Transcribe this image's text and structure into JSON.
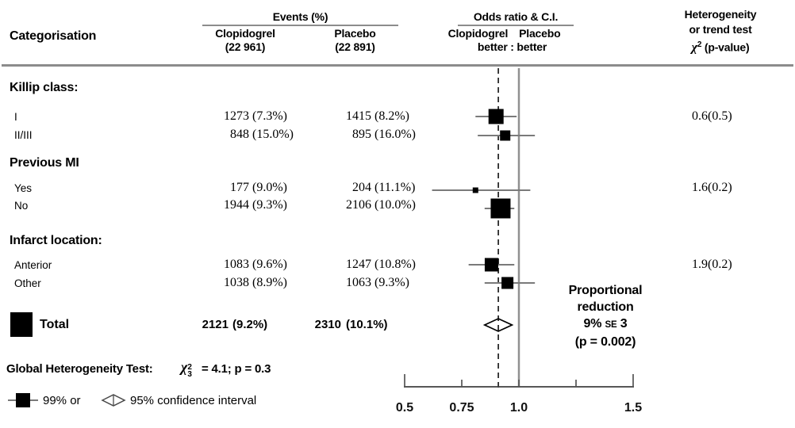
{
  "header": {
    "categorisation": "Categorisation",
    "events_group": "Events (%)",
    "clopidogrel": "Clopidogrel",
    "clopidogrel_n": "(22 961)",
    "placebo": "Placebo",
    "placebo_n": "(22 891)",
    "or_group": "Odds ratio & C.I.",
    "or_col_left": "Clopidogrel",
    "or_col_right": "Placebo",
    "or_better": "better : better",
    "het_l1": "Heterogeneity",
    "het_l2": "or trend test",
    "het_chi": "χ",
    "het_sup": "2",
    "het_rest": "(p-value)"
  },
  "sections": [
    {
      "label": "Killip class:",
      "het": "0.6(0.5)",
      "rows": [
        {
          "label": "I",
          "c_n": "1273",
          "c_pct": "(7.3%)",
          "p_n": "1415",
          "p_pct": "(8.2%)"
        },
        {
          "label": "II/III",
          "c_n": "848",
          "c_pct": "(15.0%)",
          "p_n": "895",
          "p_pct": "(16.0%)"
        }
      ]
    },
    {
      "label": "Previous MI",
      "het": "1.6(0.2)",
      "rows": [
        {
          "label": "Yes",
          "c_n": "177",
          "c_pct": "(9.0%)",
          "p_n": "204",
          "p_pct": "(11.1%)"
        },
        {
          "label": "No",
          "c_n": "1944",
          "c_pct": "(9.3%)",
          "p_n": "2106",
          "p_pct": "(10.0%)"
        }
      ]
    },
    {
      "label": "Infarct location:",
      "het": "1.9(0.2)",
      "rows": [
        {
          "label": "Anterior",
          "c_n": "1083",
          "c_pct": "(9.6%)",
          "p_n": "1247",
          "p_pct": "(10.8%)"
        },
        {
          "label": "Other",
          "c_n": "1038",
          "c_pct": "(8.9%)",
          "p_n": "1063",
          "p_pct": "(9.3%)"
        }
      ]
    }
  ],
  "total": {
    "label": "Total",
    "c_n": "2121",
    "c_pct": "(9.2%)",
    "p_n": "2310",
    "p_pct": "(10.1%)"
  },
  "proportional": {
    "l1": "Proportional",
    "l2": "reduction",
    "l3_pre": "9% ",
    "l3_se": "SE",
    "l3_post": " 3",
    "l4": "(p = 0.002)"
  },
  "global_test": {
    "prefix": "Global Heterogeneity Test:",
    "chi": "χ",
    "sup": "2",
    "sub": "3",
    "result": "= 4.1; p = 0.3"
  },
  "legend": {
    "ci99": "99% or",
    "ci95": "95% confidence interval"
  },
  "colors": {
    "rule_gray": "#8c8c8c",
    "ci_line_gray": "#7a7a7a",
    "reference_line_gray": "#909090",
    "marker_black": "#000000"
  },
  "chart_data": {
    "type": "forest_plot",
    "title": "Odds ratio & C.I.",
    "x_axis": {
      "scale": "linear",
      "min": 0.5,
      "max": 1.5,
      "ticks": [
        0.5,
        0.75,
        1.0,
        1.25,
        1.5
      ],
      "tick_labels": [
        "0.5",
        "0.75",
        "1.0",
        "",
        "1.5"
      ]
    },
    "reference_line_or": 1.0,
    "overall_dashed_line_or": 0.91,
    "rows": [
      {
        "id": "killip_i",
        "section": "Killip class:",
        "label": "I",
        "clopidogrel_events": 1273,
        "clopidogrel_pct": 7.3,
        "placebo_events": 1415,
        "placebo_pct": 8.2,
        "or": 0.9,
        "ci_low": 0.81,
        "ci_high": 0.99,
        "marker_size": 19
      },
      {
        "id": "killip_ii_iii",
        "section": "Killip class:",
        "label": "II/III",
        "clopidogrel_events": 848,
        "clopidogrel_pct": 15.0,
        "placebo_events": 895,
        "placebo_pct": 16.0,
        "or": 0.94,
        "ci_low": 0.82,
        "ci_high": 1.07,
        "marker_size": 13
      },
      {
        "id": "prev_mi_yes",
        "section": "Previous MI",
        "label": "Yes",
        "clopidogrel_events": 177,
        "clopidogrel_pct": 9.0,
        "placebo_events": 204,
        "placebo_pct": 11.1,
        "or": 0.81,
        "ci_low": 0.62,
        "ci_high": 1.05,
        "marker_size": 7
      },
      {
        "id": "prev_mi_no",
        "section": "Previous MI",
        "label": "No",
        "clopidogrel_events": 1944,
        "clopidogrel_pct": 9.3,
        "placebo_events": 2106,
        "placebo_pct": 10.0,
        "or": 0.92,
        "ci_low": 0.85,
        "ci_high": 0.98,
        "marker_size": 25
      },
      {
        "id": "anterior",
        "section": "Infarct location:",
        "label": "Anterior",
        "clopidogrel_events": 1083,
        "clopidogrel_pct": 9.6,
        "placebo_events": 1247,
        "placebo_pct": 10.8,
        "or": 0.88,
        "ci_low": 0.78,
        "ci_high": 0.98,
        "marker_size": 17
      },
      {
        "id": "other",
        "section": "Infarct location:",
        "label": "Other",
        "clopidogrel_events": 1038,
        "clopidogrel_pct": 8.9,
        "placebo_events": 1063,
        "placebo_pct": 9.3,
        "or": 0.95,
        "ci_low": 0.85,
        "ci_high": 1.07,
        "marker_size": 15
      }
    ],
    "total": {
      "label": "Total",
      "clopidogrel_events": 2121,
      "clopidogrel_pct": 9.2,
      "placebo_events": 2310,
      "placebo_pct": 10.1,
      "or": 0.91,
      "ci_low": 0.85,
      "ci_high": 0.97,
      "marker": "open_diamond"
    },
    "heterogeneity_tests": [
      {
        "section": "Killip class:",
        "value": "0.6(0.5)"
      },
      {
        "section": "Previous MI",
        "value": "1.6(0.2)"
      },
      {
        "section": "Infarct location:",
        "value": "1.9(0.2)"
      }
    ],
    "global_heterogeneity_test": {
      "chi_sq_df": 3,
      "chi_sq": 4.1,
      "p": 0.3
    },
    "proportional_reduction": {
      "percent": 9,
      "se": 3,
      "p": 0.002
    }
  }
}
